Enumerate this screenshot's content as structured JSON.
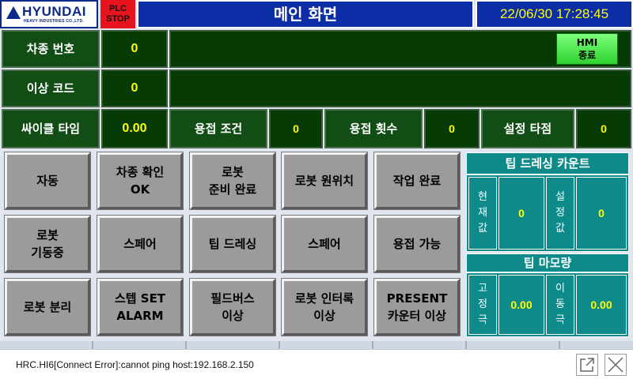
{
  "header": {
    "logo_text": "HYUNDAI",
    "logo_sub": "HEAVY INDUSTRIES CO.,LTD.",
    "plc_line1": "PLC",
    "plc_line2": "STOP",
    "title": "메인 화면",
    "datetime": "22/06/30 17:28:45"
  },
  "info": {
    "car_no_label": "차종 번호",
    "car_no_value": "0",
    "error_code_label": "이상 코드",
    "error_code_value": "0",
    "cycle_time_label": "싸이클 타임",
    "cycle_time_value": "0.00",
    "weld_condition_label": "용접 조건",
    "weld_condition_value": "0",
    "weld_count_label": "용접 횟수",
    "weld_count_value": "0",
    "set_point_label": "설정 타점",
    "set_point_value": "0",
    "hmi_exit_line1": "HMI",
    "hmi_exit_line2": "종료"
  },
  "buttons": [
    [
      "자동",
      "차종 확인\nOK",
      "로봇\n준비 완료",
      "로봇 원위치",
      "작업 완료"
    ],
    [
      "로봇\n기동중",
      "스페어",
      "팁 드레싱",
      "스페어",
      "용접 가능"
    ],
    [
      "로봇 분리",
      "스텝 SET\nALARM",
      "필드버스\n이상",
      "로봇 인터록\n이상",
      "PRESENT\n카운터 이상"
    ]
  ],
  "tip_dressing": {
    "title": "팁 드레싱 카운트",
    "current_label": [
      "현",
      "재",
      "값"
    ],
    "current_value": "0",
    "set_label": [
      "설",
      "정",
      "값"
    ],
    "set_value": "0"
  },
  "tip_wear": {
    "title": "팁 마모량",
    "fixed_label": [
      "고",
      "정",
      "극"
    ],
    "fixed_value": "0.00",
    "moving_label": [
      "이",
      "동",
      "극"
    ],
    "moving_value": "0.00"
  },
  "status": {
    "message": "HRC.HI6[Connect Error]:cannot ping host:192.168.2.150"
  },
  "colors": {
    "header_blue": "#0b2da6",
    "plc_red": "#e8141d",
    "info_green": "#114d14",
    "value_yellow": "#ffff00",
    "hmi_green": "#2fd22f",
    "button_gray": "#9b9b9b",
    "panel_teal": "#0e8a8a"
  }
}
